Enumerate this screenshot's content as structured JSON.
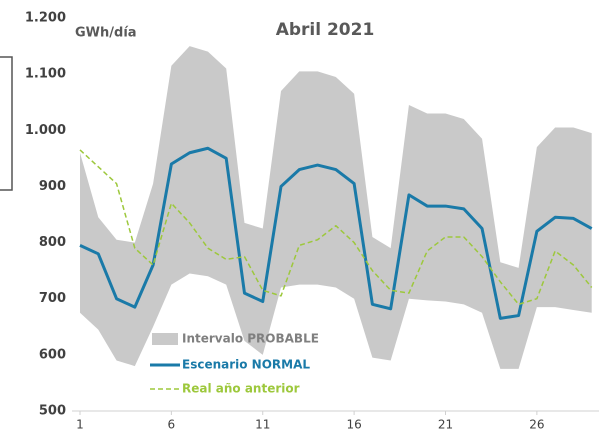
{
  "chart_data": {
    "type": "line",
    "title": "Abril 2021",
    "y_label": "GWh/día",
    "x": [
      1,
      2,
      3,
      4,
      5,
      6,
      7,
      8,
      9,
      10,
      11,
      12,
      13,
      14,
      15,
      16,
      17,
      18,
      19,
      20,
      21,
      22,
      23,
      24,
      25,
      26,
      27,
      28,
      29
    ],
    "xlim": [
      1,
      29.4
    ],
    "xticks": [
      1,
      6,
      11,
      16,
      21,
      26
    ],
    "ylim": [
      500,
      1200
    ],
    "yticks": [
      500,
      600,
      700,
      800,
      900,
      {
        "value": 1000,
        "label": "1.000"
      },
      {
        "value": 1100,
        "label": "1.100"
      },
      {
        "value": 1200,
        "label": "1.200"
      }
    ],
    "series": [
      {
        "name": "Intervalo PROBABLE",
        "color": "#c9c9c9",
        "values": [
          960,
          845,
          805,
          800,
          905,
          1115,
          1150,
          1140,
          1110,
          835,
          825,
          1070,
          1105,
          1105,
          1095,
          1065,
          810,
          790,
          1045,
          1030,
          1030,
          1020,
          985,
          765,
          755,
          970,
          1005,
          1005,
          995
        ],
        "lower": [
          675,
          645,
          590,
          580,
          650,
          725,
          745,
          740,
          725,
          625,
          600,
          720,
          725,
          725,
          720,
          700,
          595,
          590,
          700,
          697,
          695,
          690,
          675,
          575,
          575,
          685,
          685,
          680,
          675
        ]
      },
      {
        "name": "Escenario NORMAL",
        "color": "#1a7aa8",
        "values": [
          795,
          780,
          700,
          685,
          760,
          940,
          960,
          968,
          950,
          710,
          695,
          900,
          930,
          938,
          930,
          905,
          690,
          682,
          885,
          865,
          865,
          860,
          825,
          665,
          670,
          820,
          845,
          843,
          825
        ]
      },
      {
        "name": "Real año anterior",
        "color": "#9dc83c",
        "values": [
          965,
          935,
          905,
          790,
          760,
          870,
          835,
          790,
          770,
          775,
          715,
          705,
          795,
          805,
          830,
          800,
          750,
          715,
          710,
          785,
          810,
          810,
          775,
          730,
          690,
          700,
          785,
          760,
          720
        ]
      }
    ]
  }
}
